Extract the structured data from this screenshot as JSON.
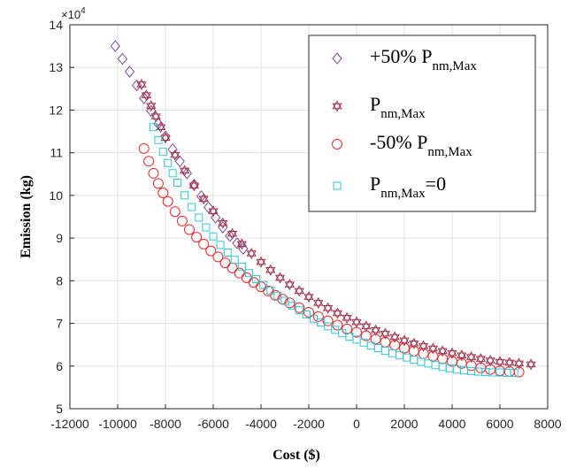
{
  "chart_data": {
    "type": "scatter",
    "xlabel": "Cost ($)",
    "ylabel": "Emission (kg)",
    "y_multiplier": "×10",
    "y_exponent": "4",
    "xlim": [
      -12000,
      8000
    ],
    "ylim": [
      5,
      14
    ],
    "x_ticks": [
      "-12000",
      "-10000",
      "-8000",
      "-6000",
      "-4000",
      "-2000",
      "0",
      "2000",
      "4000",
      "6000",
      "8000"
    ],
    "y_ticks": [
      "5",
      "6",
      "7",
      "8",
      "9",
      "10",
      "11",
      "12",
      "13",
      "14"
    ],
    "grid": true,
    "legend_position": "top-right",
    "series": [
      {
        "name": "+50% P",
        "name_sub": "nm,Max",
        "name_after": "",
        "marker": "diamond",
        "color": "#7b4aa0",
        "x": [
          -10100,
          -9800,
          -9500,
          -9200,
          -8900,
          -8600,
          -8300,
          -8000,
          -7700,
          -7400,
          -7100,
          -6800,
          -6500,
          -6200,
          -5900,
          -5600,
          -5300,
          -5000,
          -4750
        ],
        "y": [
          13.5,
          13.2,
          12.9,
          12.58,
          12.28,
          11.98,
          11.68,
          11.38,
          11.08,
          10.8,
          10.52,
          10.25,
          9.98,
          9.72,
          9.48,
          9.25,
          9.05,
          8.88,
          8.75
        ]
      },
      {
        "name": "P",
        "name_sub": "nm,Max",
        "name_after": "",
        "marker": "hexagram",
        "color": "#a0304a",
        "x": [
          -9000,
          -8800,
          -8600,
          -8400,
          -8200,
          -8000,
          -7600,
          -7200,
          -6800,
          -6400,
          -6000,
          -5600,
          -5200,
          -4800,
          -4400,
          -4000,
          -3600,
          -3200,
          -2800,
          -2400,
          -2000,
          -1600,
          -1200,
          -800,
          -400,
          0,
          400,
          800,
          1200,
          1600,
          2000,
          2400,
          2800,
          3200,
          3600,
          4000,
          4400,
          4800,
          5200,
          5600,
          6000,
          6400,
          6800,
          7300
        ],
        "y": [
          12.6,
          12.35,
          12.1,
          11.85,
          11.6,
          11.35,
          10.95,
          10.58,
          10.23,
          9.92,
          9.63,
          9.35,
          9.1,
          8.86,
          8.64,
          8.44,
          8.25,
          8.07,
          7.91,
          7.76,
          7.62,
          7.48,
          7.36,
          7.24,
          7.13,
          7.03,
          6.93,
          6.84,
          6.76,
          6.68,
          6.6,
          6.53,
          6.47,
          6.41,
          6.35,
          6.3,
          6.25,
          6.21,
          6.17,
          6.13,
          6.1,
          6.08,
          6.06,
          6.04
        ]
      },
      {
        "name": "-50% P",
        "name_sub": "nm,Max",
        "name_after": "",
        "marker": "circle",
        "color": "#e8282a",
        "x": [
          -8900,
          -8700,
          -8500,
          -8300,
          -8100,
          -7900,
          -7600,
          -7300,
          -7000,
          -6700,
          -6400,
          -6100,
          -5800,
          -5500,
          -5200,
          -4900,
          -4600,
          -4300,
          -4000,
          -3700,
          -3400,
          -3100,
          -2800,
          -2400,
          -2000,
          -1600,
          -1200,
          -800,
          -400,
          0,
          400,
          800,
          1200,
          1600,
          2000,
          2400,
          2800,
          3200,
          3600,
          4000,
          4400,
          4800,
          5200,
          5600,
          6000,
          6400,
          6800
        ],
        "y": [
          11.1,
          10.8,
          10.52,
          10.28,
          10.06,
          9.86,
          9.62,
          9.4,
          9.2,
          9.02,
          8.86,
          8.7,
          8.56,
          8.42,
          8.3,
          8.18,
          8.07,
          7.96,
          7.86,
          7.76,
          7.66,
          7.57,
          7.48,
          7.37,
          7.26,
          7.16,
          7.06,
          6.96,
          6.87,
          6.79,
          6.71,
          6.63,
          6.56,
          6.49,
          6.42,
          6.35,
          6.29,
          6.23,
          6.17,
          6.11,
          6.06,
          6.01,
          5.96,
          5.92,
          5.89,
          5.87,
          5.86
        ]
      },
      {
        "name": "P",
        "name_sub": "nm,Max",
        "name_after": "=0",
        "marker": "square",
        "color": "#33c6d4",
        "x": [
          -8500,
          -8300,
          -8100,
          -7900,
          -7700,
          -7500,
          -7200,
          -6900,
          -6600,
          -6300,
          -6000,
          -5700,
          -5400,
          -5100,
          -4800,
          -4500,
          -4200,
          -3900,
          -3600,
          -3300,
          -3000,
          -2700,
          -2400,
          -2100,
          -1800,
          -1500,
          -1200,
          -900,
          -600,
          -300,
          0,
          300,
          600,
          900,
          1200,
          1500,
          1800,
          2100,
          2400,
          2700,
          3000,
          3300,
          3600,
          3900,
          4200,
          4500,
          4800,
          5100,
          5400,
          5700,
          6000,
          6300,
          6600
        ],
        "y": [
          11.6,
          11.3,
          11.02,
          10.76,
          10.52,
          10.3,
          10.0,
          9.73,
          9.48,
          9.25,
          9.04,
          8.84,
          8.66,
          8.49,
          8.33,
          8.18,
          8.04,
          7.9,
          7.77,
          7.65,
          7.53,
          7.42,
          7.31,
          7.21,
          7.11,
          7.02,
          6.93,
          6.85,
          6.77,
          6.69,
          6.62,
          6.55,
          6.48,
          6.42,
          6.36,
          6.3,
          6.25,
          6.2,
          6.15,
          6.1,
          6.06,
          6.02,
          5.98,
          5.95,
          5.92,
          5.9,
          5.88,
          5.87,
          5.86,
          5.85,
          5.85,
          5.84,
          5.84
        ]
      }
    ]
  }
}
